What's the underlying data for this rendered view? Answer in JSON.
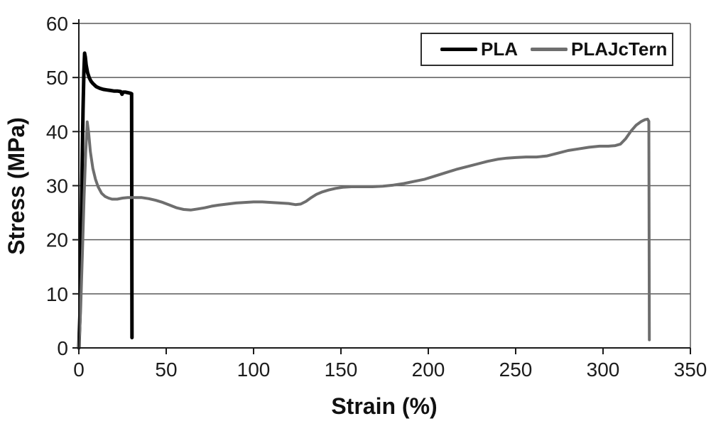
{
  "figure": {
    "background": "#ffffff"
  },
  "style": {
    "grid_color": "#5a5a5a",
    "axis_color": "#1a1a1a",
    "text_color": "#1c1c1c",
    "legend_border_color": "#2e2e2e"
  },
  "chart_data": {
    "type": "line",
    "title": "",
    "xlabel": "Strain (%)",
    "ylabel": "Stress (MPa)",
    "xlim": [
      0,
      350
    ],
    "ylim": [
      0,
      60
    ],
    "x_ticks": [
      0,
      50,
      100,
      150,
      200,
      250,
      300,
      350
    ],
    "y_ticks": [
      0,
      10,
      20,
      30,
      40,
      50,
      60
    ],
    "grid": "horizontal-only",
    "legend_position": "top-right-inside",
    "series": [
      {
        "name": "PLA",
        "color": "#000000",
        "stroke_width": 5,
        "points": [
          [
            0,
            0
          ],
          [
            0.6,
            6
          ],
          [
            1.2,
            18
          ],
          [
            1.8,
            32
          ],
          [
            2.4,
            44
          ],
          [
            2.9,
            51
          ],
          [
            3.3,
            54.5
          ],
          [
            3.7,
            53.8
          ],
          [
            4.2,
            52.3
          ],
          [
            5,
            50.9
          ],
          [
            6,
            49.9
          ],
          [
            7,
            49.3
          ],
          [
            8,
            48.9
          ],
          [
            9,
            48.6
          ],
          [
            10,
            48.3
          ],
          [
            12,
            48
          ],
          [
            14,
            47.8
          ],
          [
            16,
            47.7
          ],
          [
            18,
            47.6
          ],
          [
            20,
            47.5
          ],
          [
            22,
            47.5
          ],
          [
            24,
            47.4
          ],
          [
            24.7,
            46.9
          ],
          [
            25.3,
            47.3
          ],
          [
            26.5,
            47.3
          ],
          [
            28,
            47.2
          ],
          [
            29.5,
            47.1
          ],
          [
            30.2,
            47
          ],
          [
            30.4,
            1.9
          ]
        ]
      },
      {
        "name": "PLAJcTern",
        "color": "#6e6e6e",
        "stroke_width": 4,
        "points": [
          [
            0,
            0
          ],
          [
            1,
            7
          ],
          [
            2,
            17
          ],
          [
            3,
            28
          ],
          [
            3.9,
            36
          ],
          [
            4.8,
            41.8
          ],
          [
            5.6,
            39.8
          ],
          [
            6.6,
            36.3
          ],
          [
            8,
            33.2
          ],
          [
            9.5,
            31.2
          ],
          [
            11,
            29.8
          ],
          [
            13,
            28.6
          ],
          [
            15,
            28
          ],
          [
            17,
            27.7
          ],
          [
            19,
            27.5
          ],
          [
            22,
            27.5
          ],
          [
            25,
            27.7
          ],
          [
            28,
            27.8
          ],
          [
            32,
            27.8
          ],
          [
            36,
            27.8
          ],
          [
            40,
            27.6
          ],
          [
            44,
            27.3
          ],
          [
            48,
            26.9
          ],
          [
            52,
            26.4
          ],
          [
            56,
            25.9
          ],
          [
            60,
            25.6
          ],
          [
            64,
            25.5
          ],
          [
            68,
            25.7
          ],
          [
            72,
            25.9
          ],
          [
            76,
            26.2
          ],
          [
            80,
            26.4
          ],
          [
            85,
            26.6
          ],
          [
            90,
            26.8
          ],
          [
            95,
            26.9
          ],
          [
            100,
            27
          ],
          [
            105,
            27
          ],
          [
            110,
            26.9
          ],
          [
            115,
            26.8
          ],
          [
            120,
            26.7
          ],
          [
            124,
            26.5
          ],
          [
            127,
            26.6
          ],
          [
            130,
            27.1
          ],
          [
            133,
            27.8
          ],
          [
            136,
            28.4
          ],
          [
            139,
            28.8
          ],
          [
            143,
            29.2
          ],
          [
            147,
            29.5
          ],
          [
            151,
            29.7
          ],
          [
            156,
            29.8
          ],
          [
            162,
            29.8
          ],
          [
            168,
            29.8
          ],
          [
            174,
            29.9
          ],
          [
            180,
            30.1
          ],
          [
            186,
            30.4
          ],
          [
            192,
            30.8
          ],
          [
            198,
            31.2
          ],
          [
            204,
            31.8
          ],
          [
            210,
            32.4
          ],
          [
            216,
            33
          ],
          [
            222,
            33.5
          ],
          [
            228,
            34
          ],
          [
            234,
            34.5
          ],
          [
            240,
            34.9
          ],
          [
            245,
            35.1
          ],
          [
            250,
            35.2
          ],
          [
            256,
            35.3
          ],
          [
            262,
            35.3
          ],
          [
            268,
            35.5
          ],
          [
            274,
            36
          ],
          [
            280,
            36.5
          ],
          [
            286,
            36.8
          ],
          [
            292,
            37.1
          ],
          [
            298,
            37.3
          ],
          [
            303,
            37.3
          ],
          [
            307,
            37.4
          ],
          [
            310,
            37.7
          ],
          [
            313,
            38.7
          ],
          [
            316,
            40.1
          ],
          [
            319,
            41.2
          ],
          [
            322,
            41.9
          ],
          [
            324,
            42.2
          ],
          [
            325.5,
            42.3
          ],
          [
            326.2,
            41.9
          ],
          [
            326.5,
            1.5
          ]
        ]
      }
    ]
  }
}
